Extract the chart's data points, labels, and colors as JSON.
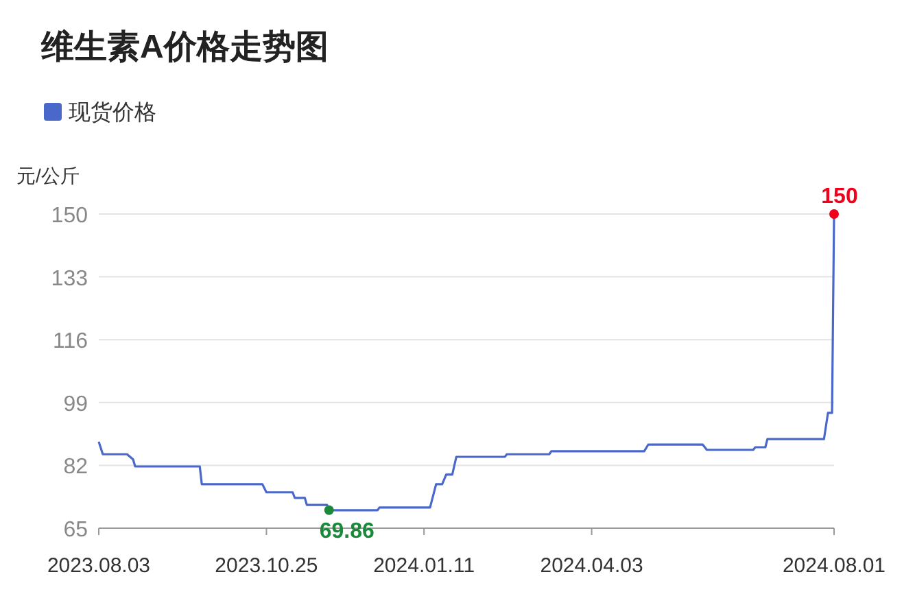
{
  "chart_data": {
    "type": "line",
    "title": "维生素A价格走势图",
    "ylabel": "元/公斤",
    "legend": "top left",
    "grid": "y",
    "marker": "none",
    "line_style": "solid",
    "x": [
      "2023-08-03",
      "2023-08-05",
      "2023-08-17",
      "2023-08-20",
      "2023-08-21",
      "2023-09-22",
      "2023-09-23",
      "2023-10-23",
      "2023-10-25",
      "2023-11-07",
      "2023-11-08",
      "2023-11-13",
      "2023-11-14",
      "2023-11-24",
      "2023-11-25",
      "2023-12-19",
      "2023-12-20",
      "2024-01-14",
      "2024-01-17",
      "2024-01-20",
      "2024-01-22",
      "2024-01-25",
      "2024-01-27",
      "2024-02-20",
      "2024-02-21",
      "2024-03-13",
      "2024-03-14",
      "2024-04-29",
      "2024-05-01",
      "2024-05-28",
      "2024-05-30",
      "2024-06-22",
      "2024-06-23",
      "2024-06-28",
      "2024-06-29",
      "2024-07-27",
      "2024-07-29",
      "2024-07-31",
      "2024-08-01"
    ],
    "series": [
      {
        "name": "现货价格",
        "color": "#4a68c9",
        "values": [
          88.4,
          85.0,
          85.0,
          83.6,
          81.7,
          81.7,
          76.9,
          76.9,
          74.7,
          74.7,
          73.2,
          73.2,
          71.3,
          71.3,
          69.86,
          69.86,
          70.6,
          70.6,
          76.9,
          76.9,
          79.5,
          79.5,
          84.3,
          84.3,
          85.0,
          85.0,
          85.8,
          85.8,
          87.6,
          87.6,
          86.2,
          86.2,
          86.9,
          86.9,
          89.1,
          89.1,
          96.2,
          96.2,
          150
        ]
      }
    ],
    "xlim": [
      "2023-08-03",
      "2024-08-01"
    ],
    "xticks": [
      {
        "value": "2023-08-03",
        "label": "2023.08.03"
      },
      {
        "value": "2023-10-25",
        "label": "2023.10.25"
      },
      {
        "value": "2024-01-11",
        "label": "2024.01.11"
      },
      {
        "value": "2024-04-03",
        "label": "2024.04.03"
      },
      {
        "value": "2024-08-01",
        "label": "2024.08.01"
      }
    ],
    "ylim": [
      65,
      150
    ],
    "yticks": [
      65,
      82,
      99,
      116,
      133,
      150
    ],
    "annotations": [
      {
        "text": "69.86",
        "x": "2023-11-25",
        "y": 69.86
      },
      {
        "text": "150",
        "x": "2024-08-01",
        "y": 150
      }
    ]
  }
}
